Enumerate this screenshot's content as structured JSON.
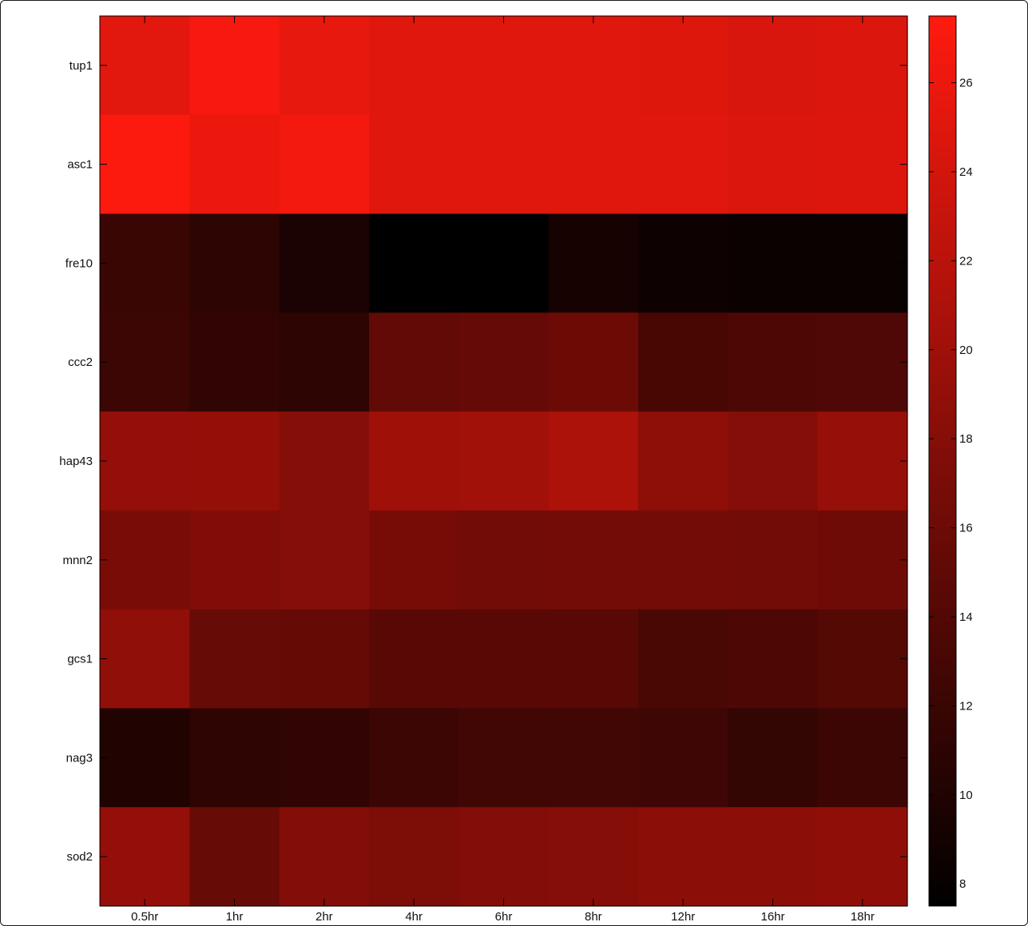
{
  "chart_data": {
    "type": "heatmap",
    "x_labels": [
      "0.5hr",
      "1hr",
      "2hr",
      "4hr",
      "6hr",
      "8hr",
      "12hr",
      "16hr",
      "18hr"
    ],
    "y_labels": [
      "tup1",
      "asc1",
      "fre10",
      "ccc2",
      "hap43",
      "mnn2",
      "gcs1",
      "nag3",
      "sod2"
    ],
    "values": [
      [
        25.2,
        26.9,
        25.6,
        25.0,
        25.0,
        25.0,
        24.9,
        24.5,
        24.7
      ],
      [
        27.3,
        26.0,
        26.6,
        25.0,
        25.0,
        25.0,
        25.0,
        24.6,
        24.8
      ],
      [
        12.0,
        11.0,
        9.5,
        7.6,
        7.6,
        9.2,
        8.5,
        8.4,
        8.3
      ],
      [
        12.2,
        11.3,
        11.0,
        15.1,
        15.4,
        16.0,
        13.2,
        13.5,
        13.7
      ],
      [
        19.1,
        19.2,
        17.9,
        20.0,
        20.1,
        21.0,
        18.6,
        17.9,
        19.3
      ],
      [
        17.0,
        17.6,
        17.9,
        16.8,
        16.4,
        16.5,
        16.5,
        16.4,
        16.1
      ],
      [
        18.8,
        15.6,
        15.5,
        14.5,
        14.5,
        14.5,
        13.3,
        13.5,
        14.1
      ],
      [
        10.1,
        11.2,
        11.3,
        12.2,
        12.5,
        12.6,
        12.4,
        11.5,
        12.2
      ],
      [
        19.1,
        15.6,
        17.8,
        17.2,
        17.8,
        18.0,
        18.5,
        18.5,
        18.7
      ]
    ],
    "colorbar": {
      "range": [
        7.5,
        27.5
      ],
      "ticks": [
        8,
        10,
        12,
        14,
        16,
        18,
        20,
        22,
        24,
        26
      ],
      "low_color": "#000000",
      "high_color": "#ff1a0f"
    }
  }
}
